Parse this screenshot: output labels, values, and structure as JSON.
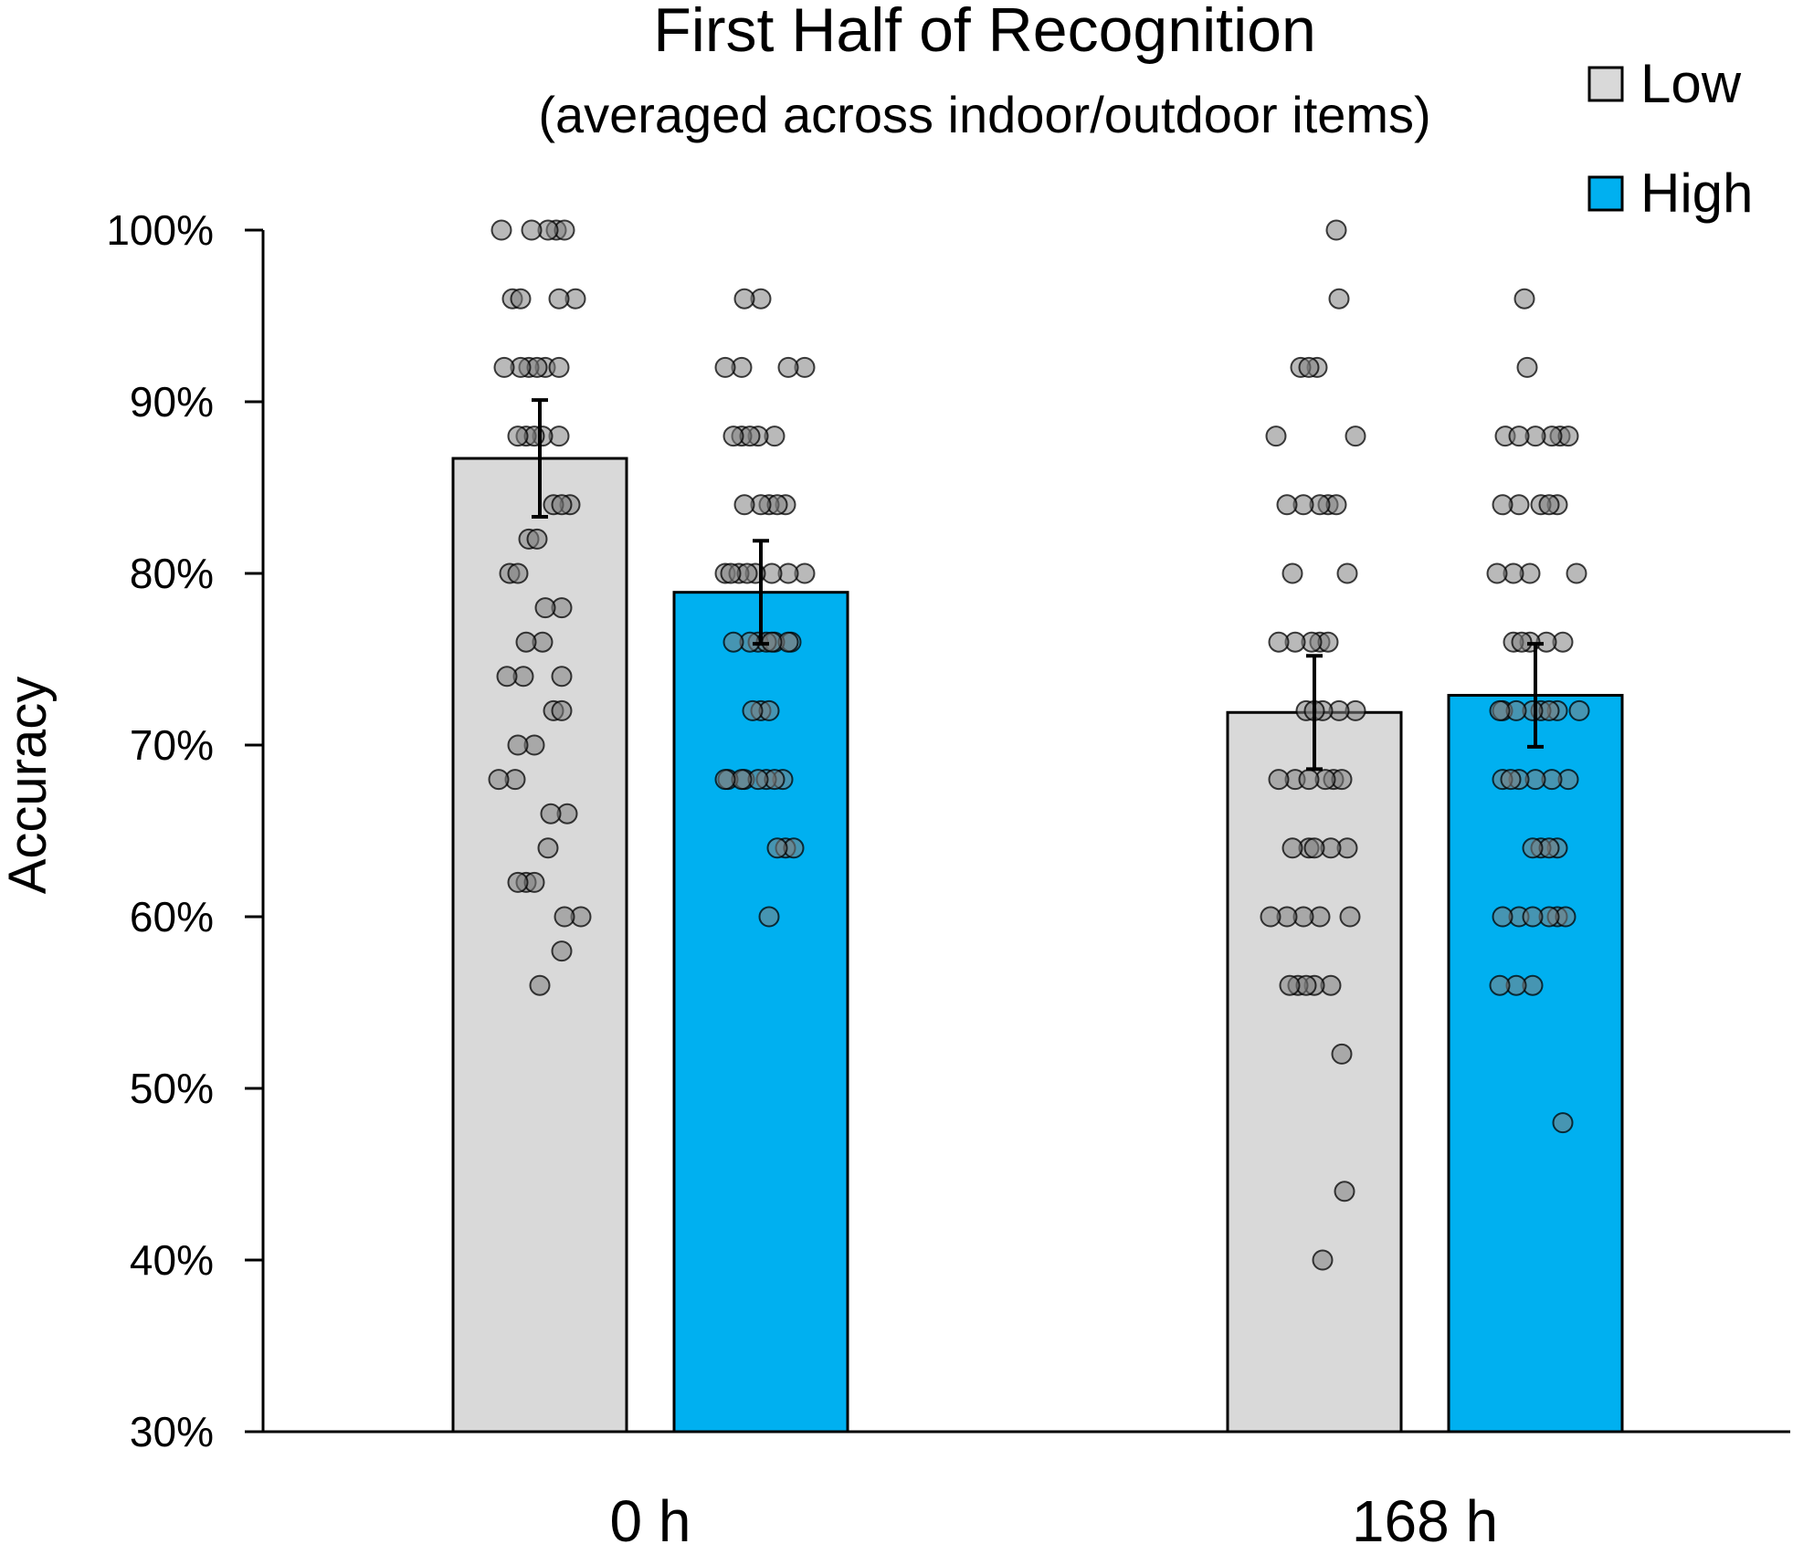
{
  "chart_data": {
    "type": "bar",
    "title": "First Half of Recognition",
    "subtitle": "(averaged across indoor/outdoor items)",
    "xlabel": "",
    "ylabel": "Accuracy",
    "ylim": [
      30,
      100
    ],
    "y_ticks": [
      "30%",
      "40%",
      "50%",
      "60%",
      "70%",
      "80%",
      "90%",
      "100%"
    ],
    "y_tick_values": [
      30,
      40,
      50,
      60,
      70,
      80,
      90,
      100
    ],
    "grid": false,
    "legend_position": "top-right",
    "categories": [
      "0 h",
      "168 h"
    ],
    "series": [
      {
        "name": "Low",
        "color": "#d9d9d9",
        "values": [
          86.7,
          71.9
        ],
        "error": [
          3.4,
          3.3
        ],
        "points": [
          [
            100,
            100,
            100,
            100,
            100,
            96,
            96,
            96,
            96,
            92,
            92,
            92,
            92,
            92,
            92,
            88,
            88,
            88,
            88,
            88,
            84,
            84,
            84,
            82,
            82,
            80,
            80,
            78,
            78,
            76,
            76,
            74,
            74,
            74,
            72,
            72,
            70,
            70,
            68,
            68,
            66,
            66,
            64,
            62,
            62,
            62,
            60,
            60,
            58,
            56
          ],
          [
            100,
            96,
            92,
            92,
            92,
            88,
            88,
            84,
            84,
            84,
            84,
            84,
            80,
            80,
            76,
            76,
            76,
            76,
            76,
            72,
            72,
            72,
            72,
            72,
            68,
            68,
            68,
            68,
            68,
            68,
            64,
            64,
            64,
            64,
            64,
            60,
            60,
            60,
            60,
            60,
            56,
            56,
            56,
            56,
            56,
            52,
            44,
            40
          ]
        ]
      },
      {
        "name": "High",
        "color": "#00b0f0",
        "values": [
          78.9,
          72.9
        ],
        "error": [
          3.0,
          3.0
        ],
        "points": [
          [
            96,
            96,
            92,
            92,
            92,
            92,
            88,
            88,
            88,
            88,
            88,
            84,
            84,
            84,
            84,
            84,
            80,
            80,
            80,
            80,
            80,
            80,
            80,
            80,
            76,
            76,
            76,
            76,
            76,
            76,
            76,
            76,
            72,
            72,
            72,
            68,
            68,
            68,
            68,
            68,
            68,
            68,
            68,
            64,
            64,
            64,
            60
          ],
          [
            96,
            92,
            88,
            88,
            88,
            88,
            88,
            88,
            84,
            84,
            84,
            84,
            84,
            80,
            80,
            80,
            80,
            76,
            76,
            76,
            76,
            76,
            72,
            72,
            72,
            72,
            72,
            72,
            72,
            72,
            68,
            68,
            68,
            68,
            68,
            68,
            64,
            64,
            64,
            64,
            60,
            60,
            60,
            60,
            60,
            60,
            56,
            56,
            56,
            48
          ]
        ]
      }
    ]
  }
}
